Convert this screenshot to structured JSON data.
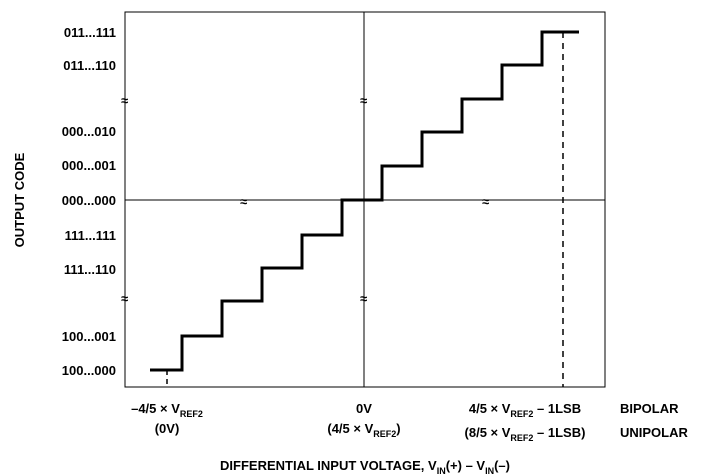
{
  "chart_data": {
    "type": "line",
    "xlabel": {
      "text": "DIFFERENTIAL INPUT  VOLTAGE, V",
      "sub1": "IN",
      "mid": "(+) – V",
      "sub2": "IN",
      "tail": "(–)"
    },
    "ylabel": "OUTPUT CODE",
    "y_codes": [
      "011...111",
      "011...110",
      "000...010",
      "000...001",
      "000...000",
      "111...111",
      "111...110",
      "100...001",
      "100...000"
    ],
    "x_ticks": {
      "left": {
        "line1": "–4/5 × V",
        "sub": "REF2",
        "line2": "(0V)"
      },
      "center": {
        "line1": "0V",
        "line2_pre": "(4/5 × V",
        "sub": "REF2",
        "line2_post": ")"
      },
      "right": {
        "line1_pre": "4/5 × V",
        "line1_sub": "REF2",
        "line1_post": " – 1LSB",
        "line2_pre": "(8/5 × V",
        "line2_sub": "REF2",
        "line2_post": " – 1LSB)"
      }
    },
    "mode_labels": [
      "BIPOLAR",
      "UNIPOLAR"
    ],
    "axis_break_symbol": "≈",
    "transfer_function": {
      "lower_steps": 6,
      "upper_steps": 6,
      "dashed_markers": [
        "–4/5 × VREF2",
        "4/5 × VREF2 – 1LSB"
      ]
    }
  }
}
